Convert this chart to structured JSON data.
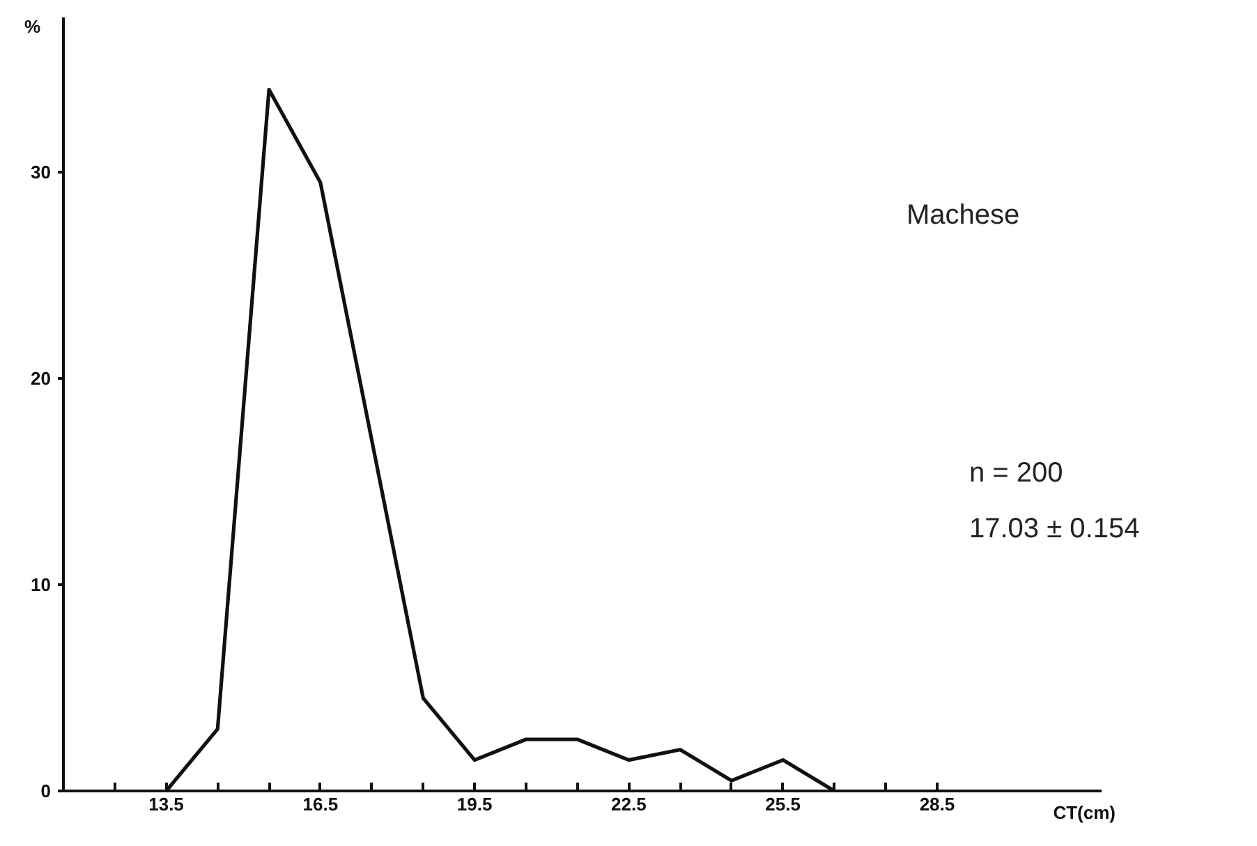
{
  "chart_data": {
    "type": "line",
    "x": [
      13.5,
      14.5,
      15.5,
      16.5,
      17.5,
      18.5,
      19.5,
      20.5,
      21.5,
      22.5,
      23.5,
      24.5,
      25.5,
      26.5
    ],
    "values": [
      0,
      3,
      34,
      29.5,
      17,
      4.5,
      1.5,
      2.5,
      2.5,
      1.5,
      2,
      0.5,
      1.5,
      0
    ],
    "color": "#111111",
    "xlabel": "CT(cm)",
    "ylabel": "%",
    "xlim": [
      11.5,
      31.7
    ],
    "ylim": [
      0,
      37.5
    ],
    "xticks": [
      {
        "value": 12.5,
        "label": null
      },
      13.5,
      {
        "value": 14.5,
        "label": null
      },
      {
        "value": 15.5,
        "label": null
      },
      16.5,
      {
        "value": 17.5,
        "label": null
      },
      {
        "value": 18.5,
        "label": null
      },
      19.5,
      {
        "value": 20.5,
        "label": null
      },
      {
        "value": 21.5,
        "label": null
      },
      22.5,
      {
        "value": 23.5,
        "label": null
      },
      {
        "value": 24.5,
        "label": null
      },
      25.5,
      {
        "value": 26.5,
        "label": null
      },
      {
        "value": 27.5,
        "label": null
      },
      28.5
    ],
    "yticks": [
      0,
      10,
      20,
      30
    ],
    "annotations": [
      "Machese",
      "n = 200",
      "17.03 ± 0.154"
    ],
    "grid": false,
    "marker": "none",
    "line_style": "solid"
  }
}
